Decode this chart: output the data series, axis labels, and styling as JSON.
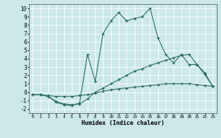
{
  "xlabel": "Humidex (Indice chaleur)",
  "background_color": "#cce8e8",
  "grid_color": "#ffffff",
  "line_color": "#2a6b5a",
  "xlim": [
    -0.5,
    23.5
  ],
  "ylim": [
    -2.5,
    10.5
  ],
  "xticks": [
    0,
    1,
    2,
    3,
    4,
    5,
    6,
    7,
    8,
    9,
    10,
    11,
    12,
    13,
    14,
    15,
    16,
    17,
    18,
    19,
    20,
    21,
    22,
    23
  ],
  "yticks": [
    -2,
    -1,
    0,
    1,
    2,
    3,
    4,
    5,
    6,
    7,
    8,
    9,
    10
  ],
  "series": [
    {
      "x": [
        0,
        1,
        2,
        3,
        4,
        5,
        6,
        7,
        8,
        9,
        10,
        11,
        12,
        13,
        14,
        15,
        16,
        17,
        18,
        19,
        20,
        21,
        22,
        23
      ],
      "y": [
        -0.3,
        -0.3,
        -0.4,
        -0.5,
        -0.5,
        -0.5,
        -0.4,
        -0.3,
        -0.1,
        0.1,
        0.3,
        0.4,
        0.5,
        0.6,
        0.7,
        0.8,
        0.9,
        1.0,
        1.0,
        1.0,
        1.0,
        0.9,
        0.8,
        0.7
      ]
    },
    {
      "x": [
        0,
        1,
        2,
        3,
        4,
        5,
        6,
        7,
        8,
        9,
        10,
        11,
        12,
        13,
        14,
        15,
        16,
        17,
        18,
        19,
        20,
        21,
        22,
        23
      ],
      "y": [
        -0.3,
        -0.3,
        -0.5,
        -1.1,
        -1.4,
        -1.5,
        -1.4,
        -0.8,
        0.0,
        0.5,
        1.0,
        1.5,
        2.0,
        2.5,
        2.8,
        3.2,
        3.5,
        3.8,
        4.1,
        4.4,
        4.5,
        3.3,
        2.1,
        0.7
      ]
    },
    {
      "x": [
        0,
        1,
        2,
        3,
        4,
        5,
        6,
        7,
        8,
        9,
        10,
        11,
        12,
        13,
        14,
        15,
        16,
        17,
        18,
        19,
        20,
        21,
        22,
        23
      ],
      "y": [
        -0.3,
        -0.3,
        -0.5,
        -1.2,
        -1.5,
        -1.6,
        -1.3,
        4.5,
        1.3,
        7.0,
        8.5,
        9.5,
        8.5,
        8.8,
        9.0,
        10.0,
        6.5,
        4.5,
        3.5,
        4.5,
        3.3,
        3.3,
        2.3,
        0.7
      ]
    }
  ]
}
